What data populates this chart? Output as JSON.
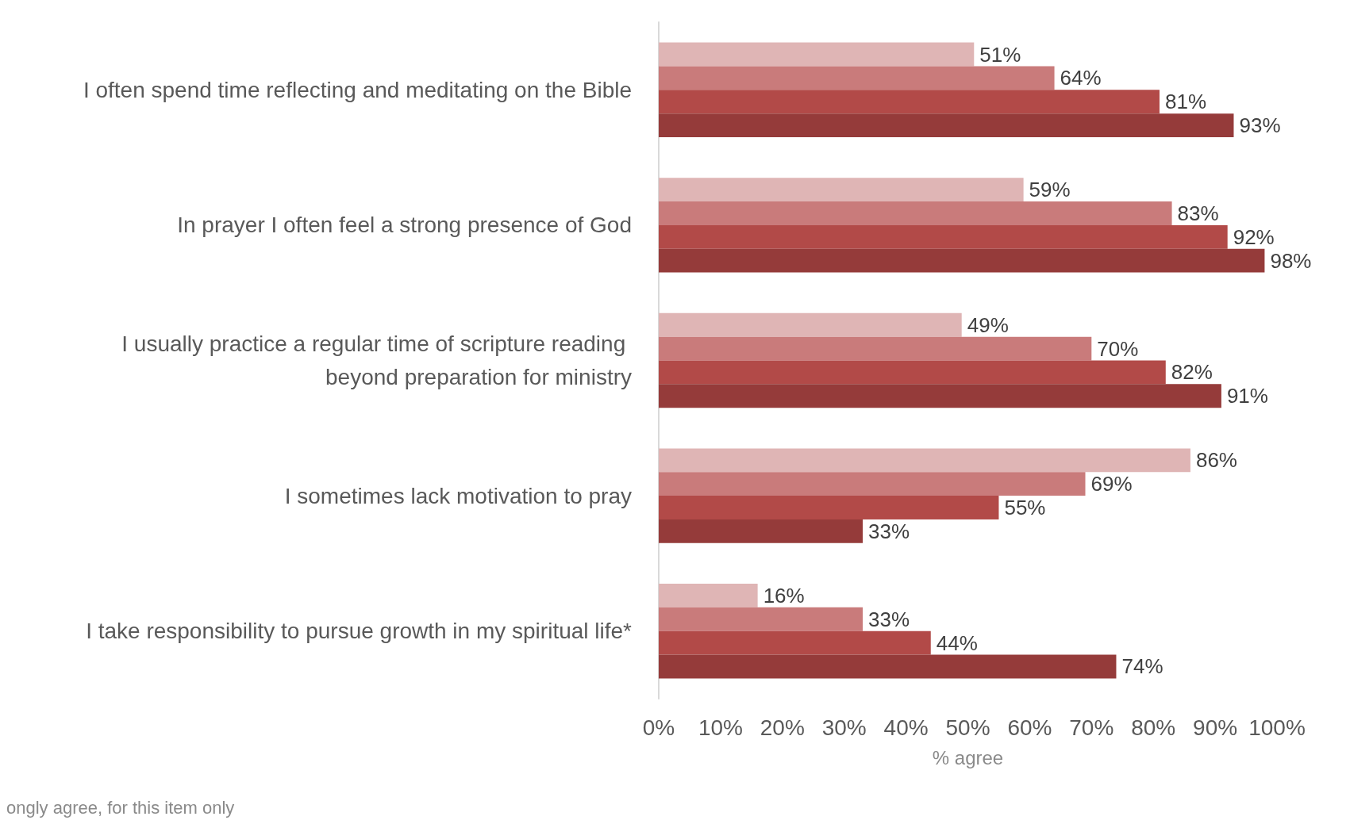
{
  "chart_data": {
    "type": "bar",
    "orientation": "horizontal",
    "categories": [
      "I often spend time reflecting and meditating on the Bible",
      "In prayer I often feel a strong presence of God",
      "I usually practice a regular time of scripture reading beyond preparation for ministry",
      "I sometimes lack motivation to pray",
      "I take responsibility to pursue growth in my spiritual life*"
    ],
    "series": [
      {
        "color": "#dfb5b5",
        "values": [
          51,
          59,
          49,
          86,
          16
        ],
        "value_labels": [
          "51%",
          "59%",
          "49%",
          "86%",
          "16%"
        ]
      },
      {
        "color": "#c97b7b",
        "values": [
          64,
          83,
          70,
          69,
          33
        ],
        "value_labels": [
          "64%",
          "83%",
          "70%",
          "69%",
          "33%"
        ]
      },
      {
        "color": "#b24a48",
        "values": [
          81,
          92,
          82,
          55,
          44
        ],
        "value_labels": [
          "81%",
          "92%",
          "82%",
          "55%",
          "44%"
        ]
      },
      {
        "color": "#953b3a",
        "values": [
          93,
          98,
          91,
          33,
          74
        ],
        "value_labels": [
          "93%",
          "98%",
          "91%",
          "33%",
          "74%"
        ]
      }
    ],
    "xlim": [
      0,
      100
    ],
    "xticks": [
      {
        "value": 0,
        "label": "0%"
      },
      {
        "value": 10,
        "label": "10%"
      },
      {
        "value": 20,
        "label": "20%"
      },
      {
        "value": 30,
        "label": "30%"
      },
      {
        "value": 40,
        "label": "40%"
      },
      {
        "value": 50,
        "label": "50%"
      },
      {
        "value": 60,
        "label": "60%"
      },
      {
        "value": 70,
        "label": "70%"
      },
      {
        "value": 80,
        "label": "80%"
      },
      {
        "value": 90,
        "label": "90%"
      },
      {
        "value": 100,
        "label": "100%"
      }
    ],
    "xlabel": "% agree",
    "grid": false,
    "annotations": [
      "ongly agree, for this item only"
    ]
  }
}
